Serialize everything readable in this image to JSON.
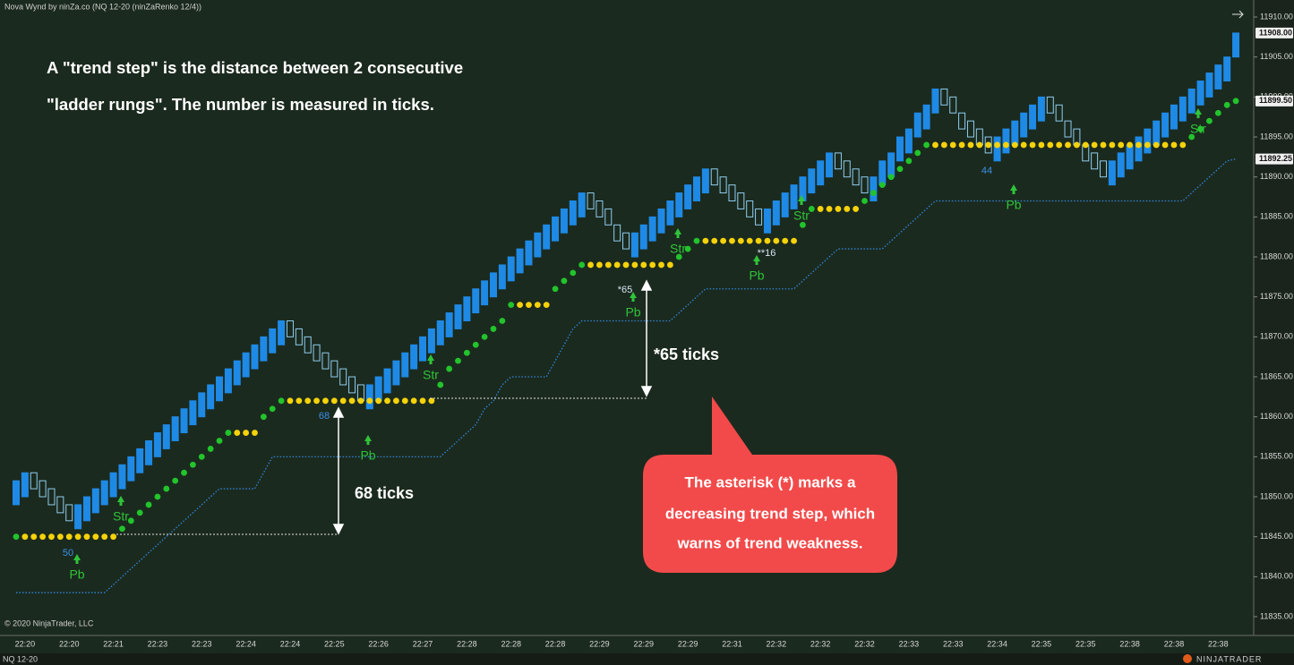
{
  "window_title": "Nova Wynd by ninZa.co (NQ 12-20 (ninZaRenko 12/4))",
  "explainer": [
    "A \"trend step\" is the distance between 2 consecutive",
    "\"ladder rungs\". The number is measured in ticks."
  ],
  "measurements": [
    "68 ticks",
    "*65 ticks"
  ],
  "callout": [
    "The asterisk (*) marks a",
    "decreasing trend step, which",
    "warns of trend weakness."
  ],
  "step_labels": [
    "50",
    "68",
    "*65",
    "**16",
    "44"
  ],
  "signals": [
    "Pb",
    "Str",
    "Pb",
    "Str",
    "Pb",
    "Str",
    "Pb",
    "Str",
    "Pb",
    "Str"
  ],
  "copyright": "© 2020 NinjaTrader, LLC",
  "instrument": "NQ 12-20",
  "brand": "NINJATRADER",
  "chart_data": {
    "type": "candlestick",
    "up_color": "#1f8ae6",
    "down_color": "#8fcdf0",
    "ladder_color": "#22c42c",
    "flat_color": "#f5d20a",
    "trail_color": "#2f86dc",
    "ylim": [
      11832.65,
      11912.13
    ],
    "yticks": [
      {
        "value": 11835,
        "label": "11835.00"
      },
      {
        "value": 11840,
        "label": "11840.00"
      },
      {
        "value": 11845,
        "label": "11845.00"
      },
      {
        "value": 11850,
        "label": "11850.00"
      },
      {
        "value": 11855,
        "label": "11855.00"
      },
      {
        "value": 11860,
        "label": "11860.00"
      },
      {
        "value": 11865,
        "label": "11865.00"
      },
      {
        "value": 11870,
        "label": "11870.00"
      },
      {
        "value": 11875,
        "label": "11875.00"
      },
      {
        "value": 11880,
        "label": "11880.00"
      },
      {
        "value": 11885,
        "label": "11885.00"
      },
      {
        "value": 11890,
        "label": "11890.00"
      },
      {
        "value": 11895,
        "label": "11895.00"
      },
      {
        "value": 11900,
        "label": "11900.00"
      },
      {
        "value": 11905,
        "label": "11905.00"
      },
      {
        "value": 11910,
        "label": "11910.00"
      }
    ],
    "price_markers": [
      {
        "value": 11908,
        "label": "11908.00"
      },
      {
        "value": 11899.5,
        "label": "11899.50"
      },
      {
        "value": 11892.25,
        "label": "11892.25"
      }
    ],
    "categories": [
      null,
      "22:20",
      null,
      null,
      null,
      null,
      "22:20",
      null,
      null,
      null,
      null,
      "22:21",
      null,
      null,
      null,
      null,
      "22:23",
      null,
      null,
      null,
      null,
      "22:23",
      null,
      null,
      null,
      null,
      "22:24",
      null,
      null,
      null,
      null,
      "22:24",
      null,
      null,
      null,
      null,
      "22:25",
      null,
      null,
      null,
      null,
      "22:26",
      null,
      null,
      null,
      null,
      "22:27",
      null,
      null,
      null,
      null,
      "22:28",
      null,
      null,
      null,
      null,
      "22:28",
      null,
      null,
      null,
      null,
      "22:28",
      null,
      null,
      null,
      null,
      "22:29",
      null,
      null,
      null,
      null,
      "22:29",
      null,
      null,
      null,
      null,
      "22:29",
      null,
      null,
      null,
      null,
      "22:31",
      null,
      null,
      null,
      null,
      "22:32",
      null,
      null,
      null,
      null,
      "22:32",
      null,
      null,
      null,
      null,
      "22:32",
      null,
      null,
      null,
      null,
      "22:33",
      null,
      null,
      null,
      null,
      "22:33",
      null,
      null,
      null,
      null,
      "22:34",
      null,
      null,
      null,
      null,
      "22:35",
      null,
      null,
      null,
      null,
      "22:35",
      null,
      null,
      null,
      null,
      "22:38",
      null,
      null,
      null,
      null,
      "22:38",
      null,
      null,
      null,
      null,
      "22:38",
      null,
      null
    ],
    "open": [
      11849,
      11850,
      11853,
      11852,
      11851,
      11850,
      11849,
      11846,
      11847,
      11848,
      11849,
      11850,
      11851,
      11852,
      11853,
      11854,
      11855,
      11856,
      11857,
      11858,
      11859,
      11860,
      11861,
      11862,
      11863,
      11864,
      11865,
      11866,
      11867,
      11868,
      11869,
      11872,
      11871,
      11870,
      11869,
      11868,
      11867,
      11866,
      11865,
      11864,
      11861,
      11862,
      11863,
      11864,
      11865,
      11866,
      11867,
      11868,
      11869,
      11870,
      11871,
      11872,
      11873,
      11874,
      11875,
      11876,
      11877,
      11878,
      11879,
      11880,
      11881,
      11882,
      11883,
      11884,
      11885,
      11888,
      11887,
      11886,
      11884,
      11883,
      11880,
      11881,
      11882,
      11883,
      11884,
      11885,
      11886,
      11887,
      11888,
      11891,
      11890,
      11889,
      11888,
      11887,
      11886,
      11883,
      11884,
      11885,
      11886,
      11887,
      11888,
      11889,
      11890,
      11893,
      11892,
      11891,
      11890,
      11887,
      11889,
      11890,
      11892,
      11893,
      11895,
      11896,
      11898,
      11901,
      11900,
      11898,
      11897,
      11896,
      11895,
      11892,
      11893,
      11894,
      11895,
      11896,
      11897,
      11900,
      11899,
      11897,
      11896,
      11894,
      11893,
      11892,
      11889,
      11890,
      11891,
      11892,
      11893,
      11894,
      11895,
      11896,
      11897,
      11898,
      11899,
      11900,
      11901,
      11902,
      11905
    ],
    "close": [
      11852,
      11853,
      11851,
      11850,
      11849,
      11848,
      11847,
      11849,
      11850,
      11851,
      11852,
      11853,
      11854,
      11855,
      11856,
      11857,
      11858,
      11859,
      11860,
      11861,
      11862,
      11863,
      11864,
      11865,
      11866,
      11867,
      11868,
      11869,
      11870,
      11871,
      11872,
      11870,
      11869,
      11868,
      11867,
      11866,
      11865,
      11864,
      11863,
      11862,
      11864,
      11865,
      11866,
      11867,
      11868,
      11869,
      11870,
      11871,
      11872,
      11873,
      11874,
      11875,
      11876,
      11877,
      11878,
      11879,
      11880,
      11881,
      11882,
      11883,
      11884,
      11885,
      11886,
      11887,
      11888,
      11886,
      11885,
      11884,
      11882,
      11881,
      11883,
      11884,
      11885,
      11886,
      11887,
      11888,
      11889,
      11890,
      11891,
      11889,
      11888,
      11887,
      11886,
      11885,
      11884,
      11886,
      11887,
      11888,
      11889,
      11890,
      11891,
      11892,
      11893,
      11891,
      11890,
      11889,
      11888,
      11890,
      11892,
      11893,
      11895,
      11896,
      11898,
      11899,
      11901,
      11899,
      11898,
      11896,
      11895,
      11894,
      11893,
      11895,
      11896,
      11897,
      11898,
      11899,
      11900,
      11898,
      11897,
      11895,
      11894,
      11892,
      11891,
      11890,
      11892,
      11893,
      11894,
      11895,
      11896,
      11897,
      11898,
      11899,
      11900,
      11901,
      11902,
      11903,
      11904,
      11905,
      11908
    ],
    "ladder": [
      11845,
      11845,
      11845,
      11845,
      11845,
      11845,
      11845,
      11845,
      11845,
      11845,
      11845,
      11845,
      11846,
      11847,
      11848,
      11849,
      11850,
      11851,
      11852,
      11853,
      11854,
      11855,
      11856,
      11857,
      11858,
      11858,
      11858,
      11858,
      11860,
      11861,
      11862,
      11862,
      11862,
      11862,
      11862,
      11862,
      11862,
      11862,
      11862,
      11862,
      11862,
      11862,
      11862,
      11862,
      11862,
      11862,
      11862,
      11862,
      11864,
      11866,
      11867,
      11868,
      11869,
      11870,
      11871,
      11872,
      11874,
      11874,
      11874,
      11874,
      11874,
      11876,
      11877,
      11878,
      11879,
      11879,
      11879,
      11879,
      11879,
      11879,
      11879,
      11879,
      11879,
      11879,
      11879,
      11880,
      11881,
      11882,
      11882,
      11882,
      11882,
      11882,
      11882,
      11882,
      11882,
      11882,
      11882,
      11882,
      11882,
      11884,
      11886,
      11886,
      11886,
      11886,
      11886,
      11886,
      11887,
      11888,
      11889,
      11890,
      11891,
      11892,
      11893,
      11894,
      11894,
      11894,
      11894,
      11894,
      11894,
      11894,
      11894,
      11894,
      11894,
      11894,
      11894,
      11894,
      11894,
      11894,
      11894,
      11894,
      11894,
      11894,
      11894,
      11894,
      11894,
      11894,
      11894,
      11894,
      11894,
      11894,
      11894,
      11894,
      11894,
      11895,
      11896,
      11897,
      11898,
      11899,
      11899.5
    ],
    "trail": [
      11838,
      11838,
      11838,
      11838,
      11838,
      11838,
      11838,
      11838,
      11838,
      11838,
      11838,
      11839,
      11840,
      11841,
      11842,
      11843,
      11844,
      11845,
      11846,
      11847,
      11848,
      11849,
      11850,
      11851,
      11851,
      11851,
      11851,
      11851,
      11853,
      11855,
      11855,
      11855,
      11855,
      11855,
      11855,
      11855,
      11855,
      11855,
      11855,
      11855,
      11855,
      11855,
      11855,
      11855,
      11855,
      11855,
      11855,
      11855,
      11855,
      11856,
      11857,
      11858,
      11859,
      11861,
      11862,
      11864,
      11865,
      11865,
      11865,
      11865,
      11865,
      11867,
      11869,
      11871,
      11872,
      11872,
      11872,
      11872,
      11872,
      11872,
      11872,
      11872,
      11872,
      11872,
      11872,
      11873,
      11874,
      11875,
      11876,
      11876,
      11876,
      11876,
      11876,
      11876,
      11876,
      11876,
      11876,
      11876,
      11876,
      11877,
      11878,
      11879,
      11880,
      11881,
      11881,
      11881,
      11881,
      11881,
      11881,
      11882,
      11883,
      11884,
      11885,
      11886,
      11887,
      11887,
      11887,
      11887,
      11887,
      11887,
      11887,
      11887,
      11887,
      11887,
      11887,
      11887,
      11887,
      11887,
      11887,
      11887,
      11887,
      11887,
      11887,
      11887,
      11887,
      11887,
      11887,
      11887,
      11887,
      11887,
      11887,
      11887,
      11887,
      11888,
      11889,
      11890,
      11891,
      11892,
      11892.25
    ]
  }
}
